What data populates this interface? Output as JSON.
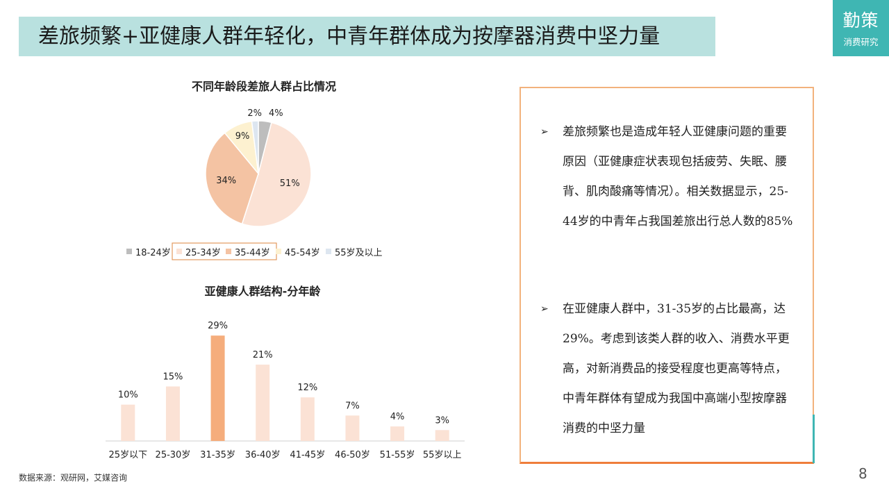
{
  "title": "差旅频繁+亚健康人群年轻化，中青年群体成为按摩器消费中坚力量",
  "brand": {
    "name": "勤策",
    "sub": "消费研究"
  },
  "chart_data": [
    {
      "type": "pie",
      "title": "不同年龄段差旅人群占比情况",
      "categories": [
        "18-24岁",
        "25-34岁",
        "35-44岁",
        "45-54岁",
        "55岁及以上"
      ],
      "values": [
        4,
        51,
        34,
        9,
        2
      ],
      "value_labels": [
        "4%",
        "51%",
        "34%",
        "9%",
        "2%"
      ],
      "colors": [
        "#bdbdbd",
        "#fbe2d5",
        "#f4c3a3",
        "#fdf1d0",
        "#dde6f0"
      ],
      "legend_position": "bottom",
      "highlighted_legend": [
        "25-34岁",
        "35-44岁"
      ]
    },
    {
      "type": "bar",
      "title": "亚健康人群结构-分年龄",
      "categories": [
        "25岁以下",
        "25-30岁",
        "31-35岁",
        "36-40岁",
        "41-45岁",
        "46-50岁",
        "51-55岁",
        "55岁以上"
      ],
      "values": [
        10,
        15,
        29,
        21,
        12,
        7,
        4,
        3
      ],
      "value_labels": [
        "10%",
        "15%",
        "29%",
        "21%",
        "12%",
        "7%",
        "4%",
        "3%"
      ],
      "bar_color": "#fbe2d5",
      "highlight_color": "#f5ad7c",
      "highlight_index": 2,
      "ylim": [
        0,
        30
      ]
    }
  ],
  "panel": {
    "bullet1": "差旅频繁也是造成年轻人亚健康问题的重要原因（亚健康症状表现包括疲劳、失眠、腰背、肌肉酸痛等情况）。相关数据显示，25-44岁的中青年占我国差旅出行总人数的85%",
    "bullet2": "在亚健康人群中，31-35岁的占比最高，达29%。考虑到该类人群的收入、消费水平更高，对新消费品的接受程度也更高等特点，中青年群体有望成为我国中高端小型按摩器消费的中坚力量",
    "arrow": "➢"
  },
  "source": "数据来源：观研网，艾媒咨询",
  "page_number": "8"
}
